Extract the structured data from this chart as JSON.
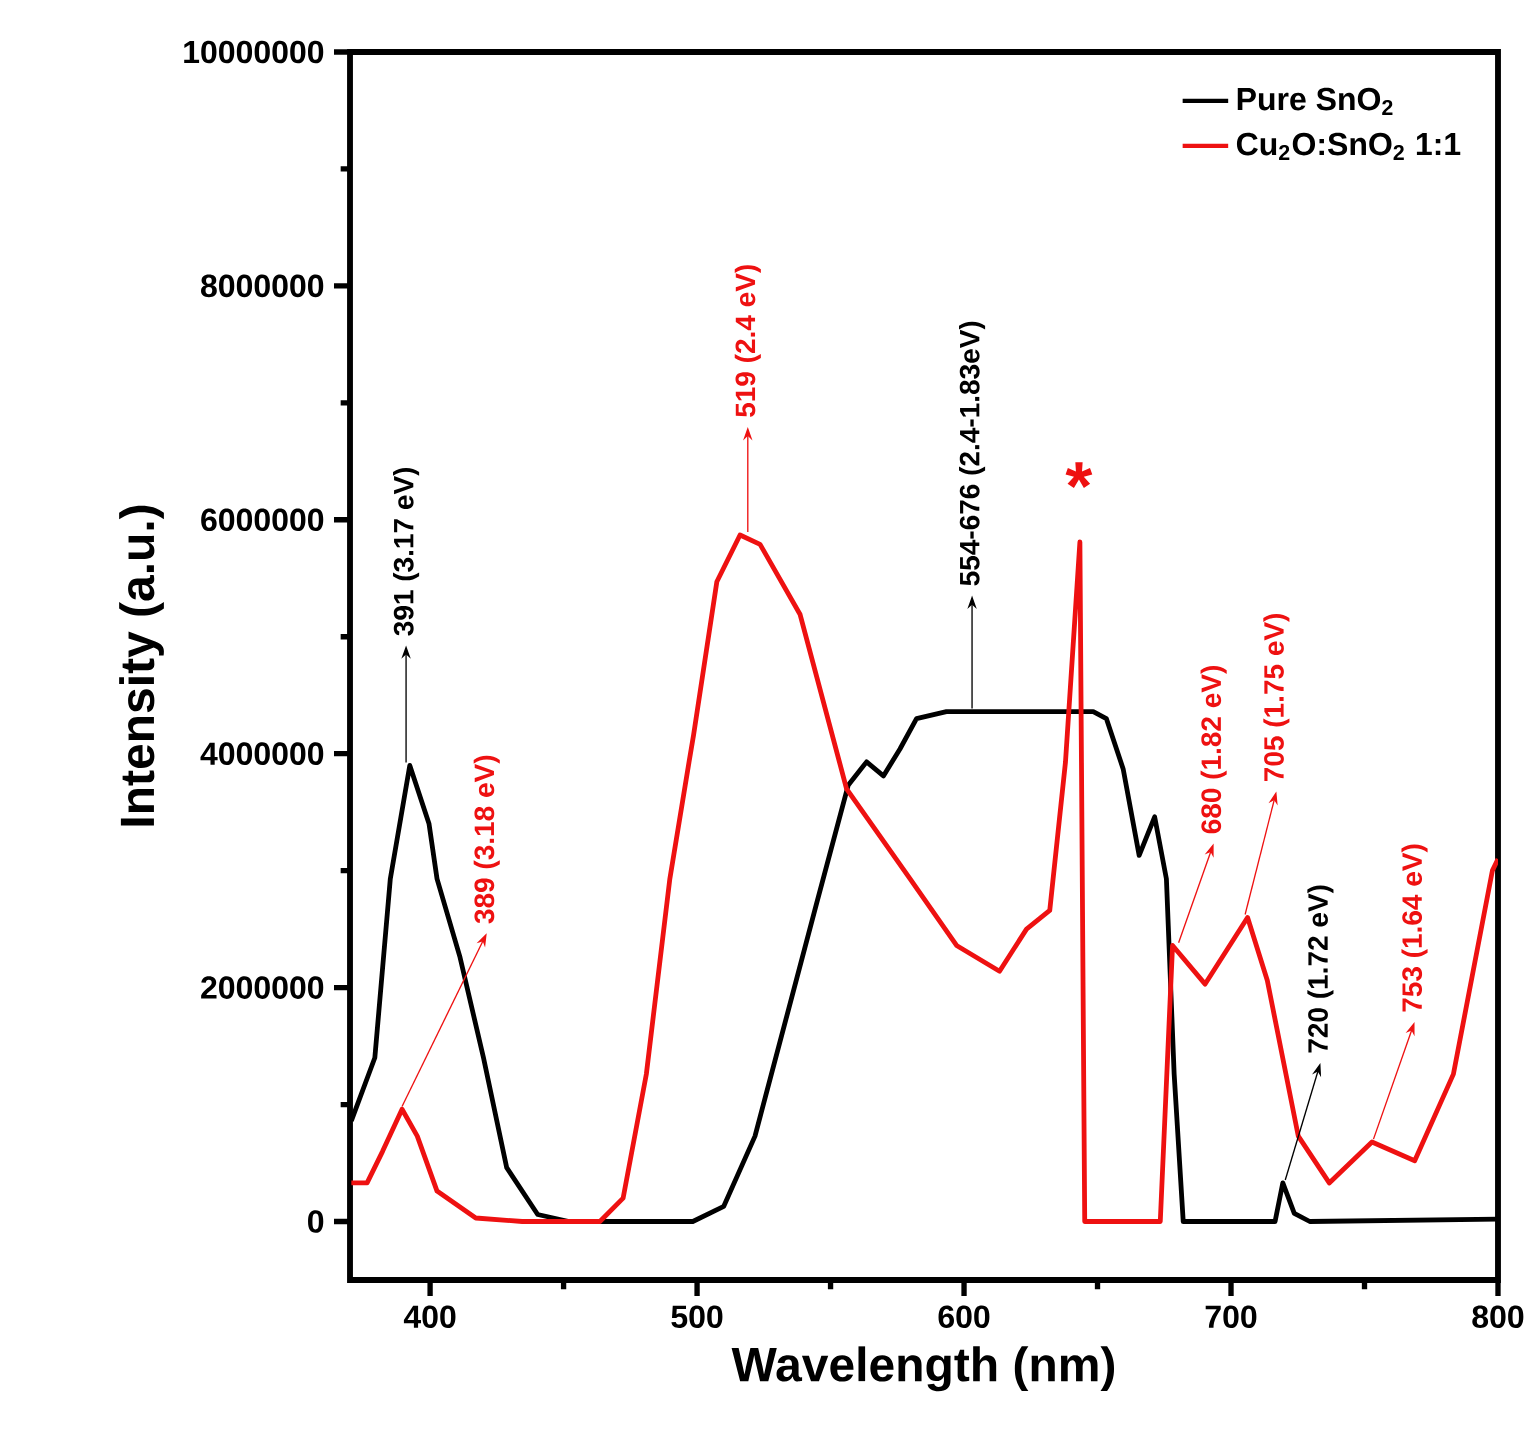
{
  "chart_data": {
    "type": "line",
    "xlabel": "Wavelength (nm)",
    "ylabel": "Intensity (a.u.)",
    "xlim": [
      370,
      800
    ],
    "ylim": [
      -500000,
      10000000
    ],
    "xticks": [
      400,
      500,
      600,
      700,
      800
    ],
    "yticks": [
      0,
      2000000,
      4000000,
      6000000,
      8000000,
      10000000
    ],
    "legend": "top right",
    "marker": "none",
    "line_style": "solid",
    "series": [
      {
        "name": "Pure SnO$_{2}$",
        "color": "#000000",
        "x": [
          370.5,
          379.3,
          385.1,
          392.4,
          399.6,
          402.6,
          411.2,
          420,
          428.7,
          440.3,
          452,
          498.4,
          510,
          521.7,
          533.3,
          544.9,
          556.6,
          563.5,
          569.8,
          576,
          582.2,
          593.4,
          648.4,
          653.3,
          659.6,
          665.6,
          671.4,
          675.8,
          678.7,
          682.1,
          716.5,
          719.4,
          723.7,
          729.5,
          800
        ],
        "values": [
          860000,
          1400000,
          2930000,
          3900000,
          3400000,
          2930000,
          2260000,
          1400000,
          460000,
          60000,
          0,
          0,
          130000,
          730000,
          1730000,
          2730000,
          3730000,
          3930000,
          3810000,
          4040000,
          4300000,
          4360000,
          4360000,
          4300000,
          3870000,
          3130000,
          3460000,
          2930000,
          1260000,
          0,
          0,
          330000,
          70000,
          0,
          20000
        ]
      },
      {
        "name": "Cu$_{2}$O:SnO$_{2}$ 1:1",
        "color": "#ee1111",
        "x": [
          370.5,
          376.4,
          382.2,
          389.5,
          395.2,
          402.6,
          417.1,
          434.5,
          463.6,
          472.3,
          481,
          489.8,
          497,
          498.7,
          507.4,
          516.1,
          523.6,
          538.6,
          556,
          579.8,
          597.2,
          613.3,
          623.4,
          632.1,
          638,
          643.4,
          645.2,
          673.5,
          678.1,
          690.3,
          706.2,
          713.6,
          725.2,
          736.8,
          752.8,
          768.8,
          783.3,
          797.9,
          800
        ],
        "values": [
          330000,
          330000,
          600000,
          960000,
          730000,
          260000,
          30000,
          0,
          0,
          200000,
          1260000,
          2930000,
          3930000,
          4160000,
          5470000,
          5870000,
          5790000,
          5190000,
          3700000,
          2930000,
          2360000,
          2140000,
          2500000,
          2660000,
          3930000,
          5810000,
          0,
          0,
          2360000,
          2030000,
          2600000,
          2060000,
          730000,
          330000,
          680000,
          520000,
          1260000,
          3000000,
          3100000
        ]
      }
    ],
    "annotations": [
      {
        "text": "391 (3.17 eV)",
        "x": 391,
        "y": 3900000
      },
      {
        "text": "389 (3.18 eV)",
        "x": 389,
        "y": 960000
      },
      {
        "text": "519 (2.4 eV)",
        "x": 519,
        "y": 5870000
      },
      {
        "text": "554-676 (2.4-1.83eV)",
        "x": 603,
        "y": 4360000
      },
      {
        "text": "*",
        "x": 643,
        "y": 5810000
      },
      {
        "text": "680 (1.82 eV)",
        "x": 680,
        "y": 2360000
      },
      {
        "text": "705 (1.75 eV)",
        "x": 705,
        "y": 2600000
      },
      {
        "text": "720 (1.72 eV)",
        "x": 720,
        "y": 330000
      },
      {
        "text": "753 (1.64 eV)",
        "x": 753,
        "y": 680000
      }
    ]
  }
}
